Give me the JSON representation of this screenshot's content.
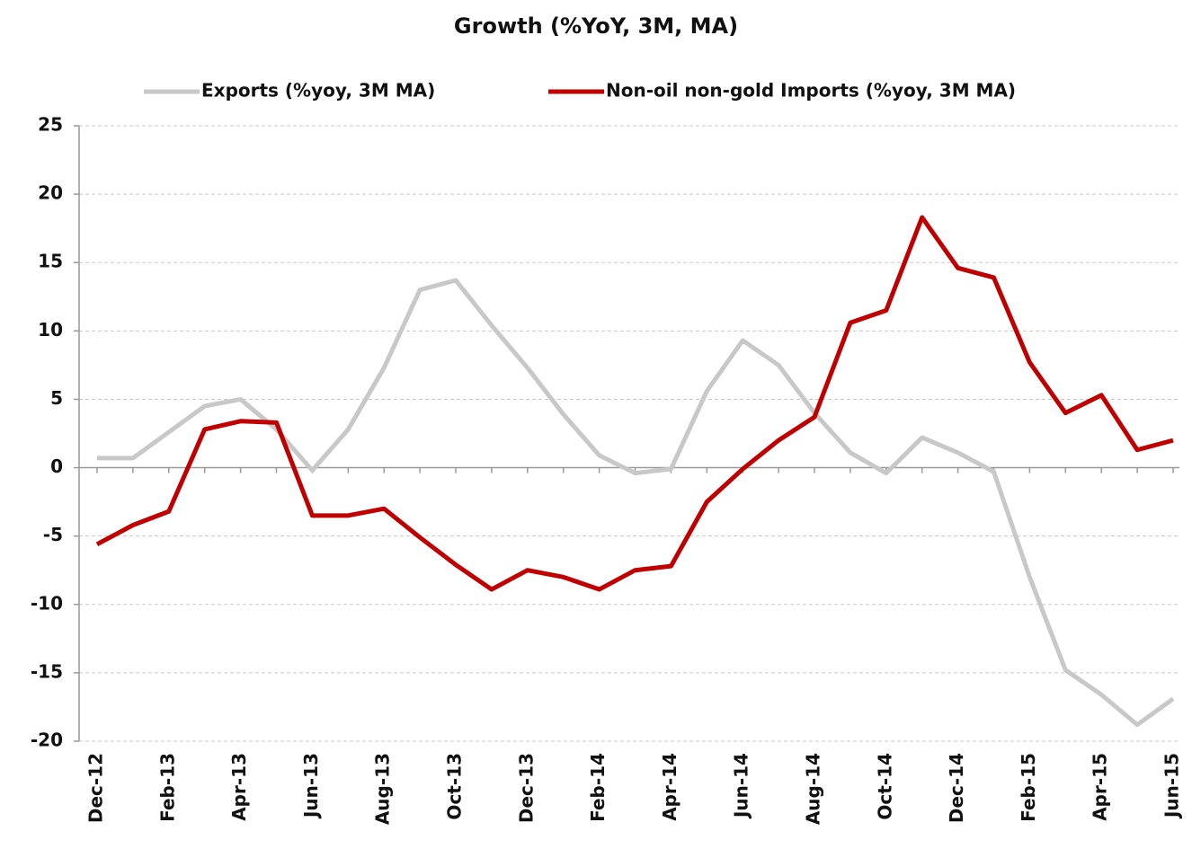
{
  "chart_data": {
    "type": "line",
    "title": "Growth (%YoY, 3M, MA)",
    "categories": [
      "Dec-12",
      null,
      "Feb-13",
      null,
      "Apr-13",
      null,
      "Jun-13",
      null,
      "Aug-13",
      null,
      "Oct-13",
      null,
      "Dec-13",
      null,
      "Feb-14",
      null,
      "Apr-14",
      null,
      "Jun-14",
      null,
      "Aug-14",
      null,
      "Oct-14",
      null,
      "Dec-14",
      null,
      "Feb-15",
      null,
      "Apr-15",
      null,
      "Jun-15"
    ],
    "series": [
      {
        "name": "Exports (%yoy, 3M MA)",
        "color": "#c8c8c8",
        "values": [
          0.7,
          0.7,
          2.6,
          4.5,
          5.0,
          2.8,
          -0.2,
          2.8,
          7.3,
          13.0,
          13.7,
          10.4,
          7.3,
          3.9,
          0.9,
          -0.4,
          -0.1,
          5.6,
          9.3,
          7.5,
          4.0,
          1.1,
          -0.4,
          2.2,
          1.1,
          -0.3,
          -8.0,
          -14.8,
          -16.6,
          -18.8,
          -16.9
        ]
      },
      {
        "name": "Non-oil non-gold Imports (%yoy, 3M MA)",
        "color": "#c00000",
        "values": [
          -5.6,
          -4.2,
          -3.2,
          2.8,
          3.4,
          3.3,
          -3.5,
          -3.5,
          -3.0,
          -5.1,
          -7.1,
          -8.9,
          -7.5,
          -8.0,
          -8.9,
          -7.5,
          -7.2,
          -2.5,
          -0.1,
          2.0,
          3.7,
          10.6,
          11.5,
          18.3,
          14.6,
          13.9,
          7.7,
          4.0,
          5.3,
          1.3,
          2.0
        ]
      }
    ],
    "ylim": [
      -20,
      25
    ],
    "yticks": [
      -20,
      -15,
      -10,
      -5,
      0,
      5,
      10,
      15,
      20,
      25
    ],
    "grid": true,
    "legend": "top"
  }
}
